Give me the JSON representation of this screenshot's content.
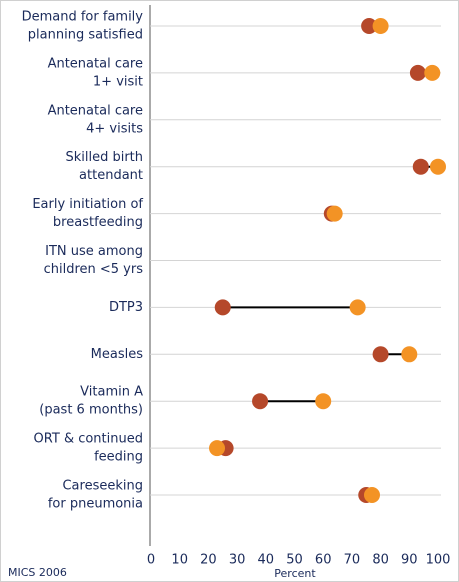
{
  "chart_data": {
    "type": "dumbbell",
    "categories": [
      [
        "Demand for family",
        "planning satisfied"
      ],
      [
        "Antenatal care",
        "1+ visit"
      ],
      [
        "Antenatal care",
        "4+ visits"
      ],
      [
        "Skilled birth",
        "attendant"
      ],
      [
        "Early initiation of",
        "breastfeeding"
      ],
      [
        "ITN use among",
        "children <5 yrs"
      ],
      [
        "DTP3"
      ],
      [
        "Measles"
      ],
      [
        "Vitamin A",
        "(past 6 months)"
      ],
      [
        "ORT & continued",
        "feeding"
      ],
      [
        "Careseeking",
        "for pneumonia"
      ]
    ],
    "series": [
      {
        "color": "#b5482a",
        "values": [
          76,
          93,
          null,
          94,
          63,
          null,
          25,
          80,
          38,
          26,
          75
        ]
      },
      {
        "color": "#f39325",
        "values": [
          80,
          98,
          null,
          100,
          64,
          null,
          72,
          90,
          60,
          23,
          77
        ]
      }
    ],
    "connector_color": "#000000",
    "xlim": [
      0,
      100
    ],
    "xticks": [
      0,
      10,
      20,
      30,
      40,
      50,
      60,
      70,
      80,
      90,
      100
    ],
    "xlabel": "Percent",
    "source": "MICS 2006",
    "grid": true
  }
}
